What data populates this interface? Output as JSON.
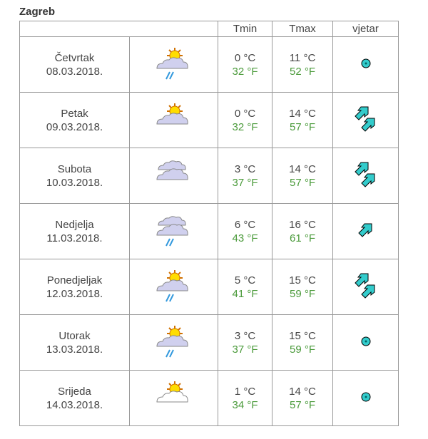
{
  "city": "Zagreb",
  "headers": {
    "tmin": "Tmin",
    "tmax": "Tmax",
    "wind": "vjetar"
  },
  "colors": {
    "fahrenheit": "#4a9a3a",
    "wind": "#33cccc"
  },
  "days": [
    {
      "name": "Četvrtak",
      "date": "08.03.2018.",
      "icon": "sun-cloud-rain",
      "tmin_c": "0 °C",
      "tmin_f": "32 °F",
      "tmax_c": "11 °C",
      "tmax_f": "52 °F",
      "wind": "calm"
    },
    {
      "name": "Petak",
      "date": "09.03.2018.",
      "icon": "sun-cloud",
      "tmin_c": "0 °C",
      "tmin_f": "32 °F",
      "tmax_c": "14 °C",
      "tmax_f": "57 °F",
      "wind": "double-arrow-ne"
    },
    {
      "name": "Subota",
      "date": "10.03.2018.",
      "icon": "cloudy",
      "tmin_c": "3 °C",
      "tmin_f": "37 °F",
      "tmax_c": "14 °C",
      "tmax_f": "57 °F",
      "wind": "double-arrow-ne"
    },
    {
      "name": "Nedjelja",
      "date": "11.03.2018.",
      "icon": "cloud-rain",
      "tmin_c": "6 °C",
      "tmin_f": "43 °F",
      "tmax_c": "16 °C",
      "tmax_f": "61 °F",
      "wind": "arrow-ne"
    },
    {
      "name": "Ponedjeljak",
      "date": "12.03.2018.",
      "icon": "sun-cloud-rain",
      "tmin_c": "5 °C",
      "tmin_f": "41 °F",
      "tmax_c": "15 °C",
      "tmax_f": "59 °F",
      "wind": "double-arrow-ne"
    },
    {
      "name": "Utorak",
      "date": "13.03.2018.",
      "icon": "sun-cloud-rain",
      "tmin_c": "3 °C",
      "tmin_f": "37 °F",
      "tmax_c": "15 °C",
      "tmax_f": "59 °F",
      "wind": "calm"
    },
    {
      "name": "Srijeda",
      "date": "14.03.2018.",
      "icon": "sun-light-cloud",
      "tmin_c": "1 °C",
      "tmin_f": "34 °F",
      "tmax_c": "14 °C",
      "tmax_f": "57 °F",
      "wind": "calm"
    }
  ]
}
